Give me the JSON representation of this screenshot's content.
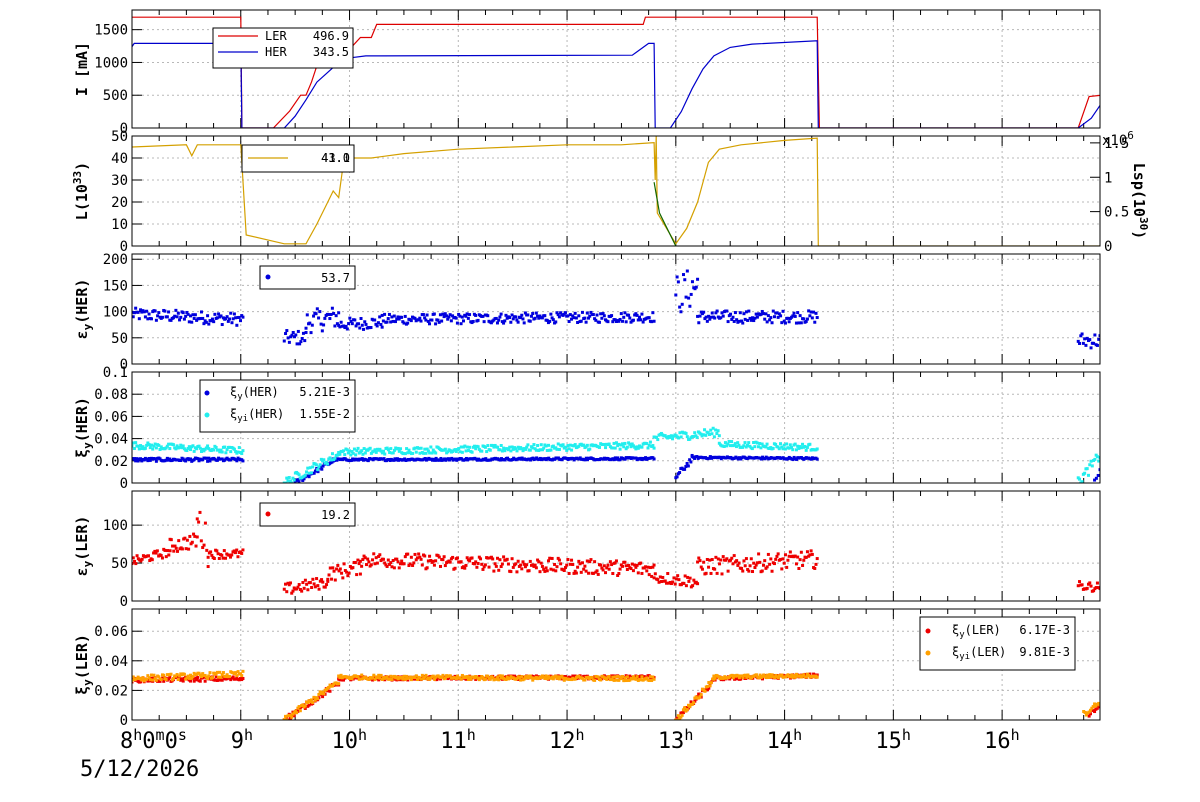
{
  "x_axis": {
    "start_label": "8",
    "start_label_sup": "h",
    "start_label_rest": "0",
    "start_label_sup2": "m",
    "start_label_rest2": "0",
    "start_label_sup3": "s",
    "date": "5/12/2026",
    "ticks": [
      {
        "base": "9",
        "sup": "h"
      },
      {
        "base": "10",
        "sup": "h"
      },
      {
        "base": "11",
        "sup": "h"
      },
      {
        "base": "12",
        "sup": "h"
      },
      {
        "base": "13",
        "sup": "h"
      },
      {
        "base": "14",
        "sup": "h"
      },
      {
        "base": "15",
        "sup": "h"
      },
      {
        "base": "16",
        "sup": "h"
      }
    ]
  },
  "chart_data": [
    {
      "type": "line",
      "ylabel": "I [mA]",
      "ylim": [
        0,
        1800
      ],
      "yticks": [
        "0",
        "500",
        "1000",
        "1500"
      ],
      "xrange_hours": [
        8.0,
        16.9
      ],
      "legend": {
        "placement": "top-left"
      },
      "series": [
        {
          "name": "LER",
          "legend_value": "496.9",
          "color": "#dd0000",
          "points": [
            [
              8.0,
              1690
            ],
            [
              9.0,
              1690
            ],
            [
              9.01,
              0
            ],
            [
              9.3,
              0
            ],
            [
              9.45,
              260
            ],
            [
              9.55,
              500
            ],
            [
              9.6,
              500
            ],
            [
              9.65,
              700
            ],
            [
              9.7,
              950
            ],
            [
              9.8,
              1000
            ],
            [
              9.9,
              1050
            ],
            [
              10.0,
              1200
            ],
            [
              10.1,
              1380
            ],
            [
              10.2,
              1380
            ],
            [
              10.25,
              1580
            ],
            [
              12.7,
              1580
            ],
            [
              12.72,
              1690
            ],
            [
              14.3,
              1690
            ],
            [
              14.32,
              0
            ],
            [
              16.7,
              0
            ],
            [
              16.8,
              480
            ],
            [
              16.9,
              497
            ]
          ]
        },
        {
          "name": "HER",
          "legend_value": "343.5",
          "color": "#0000cc",
          "points": [
            [
              8.0,
              1240
            ],
            [
              8.02,
              1290
            ],
            [
              9.0,
              1290
            ],
            [
              9.01,
              0
            ],
            [
              9.4,
              0
            ],
            [
              9.5,
              180
            ],
            [
              9.6,
              430
            ],
            [
              9.7,
              700
            ],
            [
              9.8,
              850
            ],
            [
              9.9,
              1000
            ],
            [
              10.0,
              1070
            ],
            [
              10.15,
              1100
            ],
            [
              12.6,
              1110
            ],
            [
              12.75,
              1290
            ],
            [
              12.8,
              1290
            ],
            [
              12.81,
              0
            ],
            [
              12.95,
              0
            ],
            [
              13.05,
              250
            ],
            [
              13.15,
              600
            ],
            [
              13.25,
              900
            ],
            [
              13.35,
              1100
            ],
            [
              13.5,
              1230
            ],
            [
              13.7,
              1280
            ],
            [
              14.3,
              1330
            ],
            [
              14.31,
              0
            ],
            [
              16.7,
              0
            ],
            [
              16.82,
              150
            ],
            [
              16.9,
              344
            ]
          ]
        }
      ]
    },
    {
      "type": "line",
      "ylabel": "L(10",
      "ylabel_sup": "33",
      "ylabel_end": ")",
      "ylim": [
        0,
        50
      ],
      "yticks": [
        "0",
        "10",
        "20",
        "30",
        "40",
        "50"
      ],
      "y2label": "Lsp(10",
      "y2label_sup": "30",
      "y2label_end": ")",
      "y2lim": [
        0,
        1.6
      ],
      "y2ticks": [
        "0",
        "0.5",
        "1",
        "1.5"
      ],
      "y2_multiplier": "x10",
      "y2_multiplier_sup": "6",
      "legend": {
        "placement": "top-left"
      },
      "legend_value_a": "43.0",
      "legend_value_b": "41.1",
      "series": [
        {
          "color": "#d4a000",
          "points": [
            [
              8.0,
              45
            ],
            [
              8.5,
              46
            ],
            [
              8.55,
              41
            ],
            [
              8.6,
              46
            ],
            [
              9.0,
              46
            ],
            [
              9.05,
              5
            ],
            [
              9.4,
              1
            ],
            [
              9.6,
              1
            ],
            [
              9.7,
              10
            ],
            [
              9.8,
              20
            ],
            [
              9.85,
              25
            ],
            [
              9.9,
              22
            ],
            [
              9.95,
              40
            ],
            [
              10.2,
              40
            ],
            [
              10.5,
              42
            ],
            [
              11.0,
              44
            ],
            [
              11.5,
              45
            ],
            [
              12.0,
              46
            ],
            [
              12.5,
              46
            ],
            [
              12.8,
              47
            ],
            [
              12.81,
              30
            ],
            [
              12.82,
              50
            ],
            [
              12.83,
              15
            ],
            [
              13.0,
              1
            ],
            [
              13.1,
              8
            ],
            [
              13.2,
              20
            ],
            [
              13.3,
              38
            ],
            [
              13.4,
              44
            ],
            [
              13.6,
              46
            ],
            [
              14.0,
              48
            ],
            [
              14.3,
              49
            ],
            [
              14.31,
              0
            ],
            [
              16.9,
              0
            ]
          ]
        },
        {
          "color": "#116600",
          "points": [
            [
              12.8,
              29
            ],
            [
              12.85,
              15
            ],
            [
              13.0,
              0
            ]
          ]
        }
      ]
    },
    {
      "type": "scatter",
      "ylabel": "ε",
      "ylabel_sub": "y",
      "ylabel_end": "(HER)",
      "ylim": [
        0,
        210
      ],
      "yticks": [
        "0",
        "50",
        "100",
        "150",
        "200"
      ],
      "legend": {
        "placement": "top-left"
      },
      "series": [
        {
          "legend_value": "53.7",
          "color": "#0000dd",
          "segments": [
            [
              8.0,
              9.02,
              95,
              85,
              12
            ],
            [
              9.4,
              9.6,
              50,
              50,
              14
            ],
            [
              9.6,
              9.9,
              80,
              90,
              22
            ],
            [
              9.9,
              10.3,
              75,
              80,
              12
            ],
            [
              10.3,
              12.8,
              85,
              90,
              10
            ],
            [
              13.0,
              13.2,
              130,
              150,
              40
            ],
            [
              13.2,
              14.3,
              90,
              90,
              12
            ],
            [
              16.7,
              16.9,
              45,
              45,
              15
            ]
          ]
        }
      ]
    },
    {
      "type": "scatter",
      "ylabel": "ξ",
      "ylabel_sub": "y",
      "ylabel_end": "(HER)",
      "ylim": [
        0,
        0.1
      ],
      "yticks": [
        "0",
        "0.02",
        "0.04",
        "0.06",
        "0.08",
        "0.1"
      ],
      "legend": {
        "placement": "top-left"
      },
      "series": [
        {
          "name": "ξy(HER)",
          "label_base": "ξ",
          "label_sub": "y",
          "label_end": "(HER)",
          "legend_value": "5.21E-3",
          "color": "#0000dd",
          "segments": [
            [
              8.0,
              9.02,
              0.021,
              0.021,
              0.0015
            ],
            [
              9.5,
              9.85,
              0.0,
              0.02,
              0.002
            ],
            [
              9.85,
              12.8,
              0.021,
              0.022,
              0.001
            ],
            [
              13.0,
              13.15,
              0.005,
              0.022,
              0.003
            ],
            [
              13.15,
              14.3,
              0.023,
              0.022,
              0.001
            ],
            [
              16.85,
              16.9,
              0.005,
              0.01,
              0.003
            ]
          ]
        },
        {
          "name": "ξyi(HER)",
          "label_base": "ξ",
          "label_sub": "yi",
          "label_end": "(HER)",
          "legend_value": "1.55E-2",
          "color": "#22eeee",
          "segments": [
            [
              8.0,
              9.02,
              0.034,
              0.029,
              0.003
            ],
            [
              9.4,
              9.9,
              0.0,
              0.026,
              0.004
            ],
            [
              9.9,
              12.8,
              0.028,
              0.034,
              0.003
            ],
            [
              12.8,
              13.4,
              0.04,
              0.046,
              0.004
            ],
            [
              13.4,
              14.3,
              0.035,
              0.032,
              0.003
            ],
            [
              16.7,
              16.9,
              0.0,
              0.025,
              0.005
            ]
          ]
        }
      ]
    },
    {
      "type": "scatter",
      "ylabel": "ε",
      "ylabel_sub": "y",
      "ylabel_end": "(LER)",
      "ylim": [
        0,
        145
      ],
      "yticks": [
        "0",
        "50",
        "100"
      ],
      "legend": {
        "placement": "top-left"
      },
      "series": [
        {
          "legend_value": "19.2",
          "color": "#ee0000",
          "segments": [
            [
              8.0,
              8.35,
              52,
              65,
              6
            ],
            [
              8.35,
              8.6,
              72,
              80,
              10
            ],
            [
              8.6,
              8.7,
              110,
              70,
              25
            ],
            [
              8.7,
              9.02,
              62,
              62,
              6
            ],
            [
              9.4,
              9.8,
              15,
              25,
              8
            ],
            [
              9.8,
              10.1,
              35,
              45,
              10
            ],
            [
              10.1,
              12.8,
              55,
              42,
              10
            ],
            [
              12.8,
              13.2,
              32,
              25,
              8
            ],
            [
              13.2,
              14.3,
              45,
              55,
              12
            ],
            [
              16.7,
              16.9,
              20,
              18,
              6
            ]
          ]
        }
      ]
    },
    {
      "type": "scatter",
      "ylabel": "ξ",
      "ylabel_sub": "y",
      "ylabel_end": "(LER)",
      "ylim": [
        0,
        0.075
      ],
      "yticks": [
        "0",
        "0.02",
        "0.04",
        "0.06"
      ],
      "legend": {
        "placement": "top-right"
      },
      "series": [
        {
          "name": "ξy(LER)",
          "label_base": "ξ",
          "label_sub": "y",
          "label_end": "(LER)",
          "legend_value": "6.17E-3",
          "color": "#ee0000",
          "segments": [
            [
              8.0,
              9.02,
              0.027,
              0.028,
              0.0015
            ],
            [
              9.4,
              9.9,
              0.0,
              0.025,
              0.002
            ],
            [
              9.9,
              12.8,
              0.028,
              0.029,
              0.0012
            ],
            [
              13.0,
              13.35,
              0.0,
              0.026,
              0.002
            ],
            [
              13.35,
              14.3,
              0.028,
              0.03,
              0.0012
            ],
            [
              16.8,
              16.9,
              0.004,
              0.01,
              0.002
            ]
          ]
        },
        {
          "name": "ξyi(LER)",
          "label_base": "ξ",
          "label_sub": "yi",
          "label_end": "(LER)",
          "legend_value": "9.81E-3",
          "color": "#ffa000",
          "segments": [
            [
              8.0,
              9.02,
              0.028,
              0.031,
              0.002
            ],
            [
              9.4,
              9.9,
              0.0,
              0.026,
              0.002
            ],
            [
              9.9,
              12.8,
              0.029,
              0.028,
              0.0015
            ],
            [
              13.0,
              13.35,
              0.0,
              0.027,
              0.002
            ],
            [
              13.35,
              14.3,
              0.029,
              0.03,
              0.0012
            ],
            [
              16.75,
              16.9,
              0.004,
              0.012,
              0.002
            ]
          ]
        }
      ]
    }
  ]
}
